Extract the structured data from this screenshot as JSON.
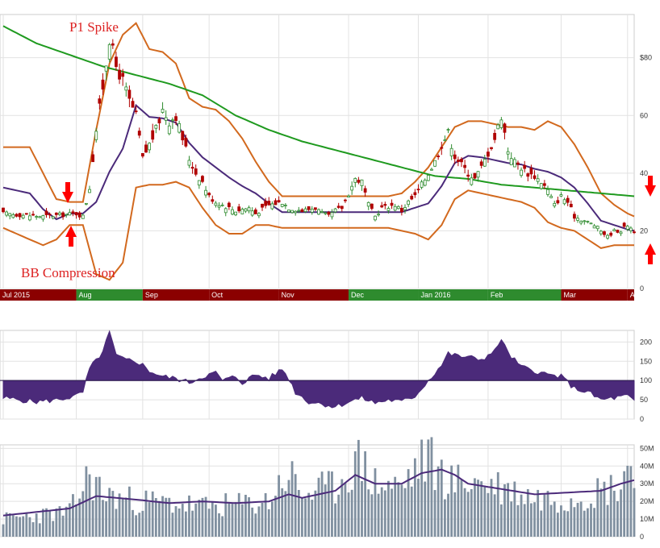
{
  "chart_data": [
    {
      "type": "candlestick",
      "panel": "price",
      "ylim": [
        0,
        95
      ],
      "y_ticks": [
        {
          "v": 0,
          "label": "0"
        },
        {
          "v": 20,
          "label": "20"
        },
        {
          "v": 40,
          "label": "40"
        },
        {
          "v": 60,
          "label": "60"
        },
        {
          "v": 80,
          "label": "$80"
        }
      ],
      "grid": true,
      "months": [
        "Jul 2015",
        "Aug",
        "Sep",
        "Oct",
        "Nov",
        "Dec",
        "Jan 2016",
        "Feb",
        "Mar",
        "Apr"
      ],
      "month_colors": [
        "#8b0000",
        "#2e8b2e",
        "#8b0000",
        "#8b0000",
        "#8b0000",
        "#2e8b2e",
        "#2e8b2e",
        "#2e8b2e",
        "#8b0000",
        "#8b0000"
      ],
      "annotations": [
        "P1 Spike",
        "BB Compression"
      ],
      "price_anchors": [
        [
          0,
          26
        ],
        [
          12,
          25
        ],
        [
          22,
          26
        ],
        [
          24,
          25
        ],
        [
          26,
          35
        ],
        [
          28,
          55
        ],
        [
          30,
          70
        ],
        [
          32,
          87
        ],
        [
          34,
          77
        ],
        [
          36,
          72
        ],
        [
          38,
          65
        ],
        [
          40,
          60
        ],
        [
          42,
          45
        ],
        [
          44,
          50
        ],
        [
          46,
          55
        ],
        [
          48,
          62
        ],
        [
          50,
          58
        ],
        [
          52,
          60
        ],
        [
          54,
          52
        ],
        [
          56,
          45
        ],
        [
          58,
          40
        ],
        [
          60,
          37
        ],
        [
          62,
          32
        ],
        [
          64,
          30
        ],
        [
          66,
          29
        ],
        [
          68,
          28
        ],
        [
          70,
          27
        ],
        [
          74,
          28
        ],
        [
          76,
          26
        ],
        [
          80,
          29
        ],
        [
          84,
          30
        ],
        [
          86,
          28
        ],
        [
          90,
          27
        ],
        [
          94,
          28
        ],
        [
          96,
          26
        ],
        [
          98,
          25
        ],
        [
          100,
          27
        ],
        [
          102,
          28
        ],
        [
          104,
          33
        ],
        [
          106,
          38
        ],
        [
          108,
          37
        ],
        [
          110,
          29
        ],
        [
          112,
          25
        ],
        [
          114,
          28
        ],
        [
          118,
          29
        ],
        [
          120,
          27
        ],
        [
          122,
          30
        ],
        [
          124,
          32
        ],
        [
          126,
          36
        ],
        [
          128,
          40
        ],
        [
          130,
          44
        ],
        [
          132,
          50
        ],
        [
          134,
          54
        ],
        [
          136,
          46
        ],
        [
          138,
          43
        ],
        [
          140,
          40
        ],
        [
          142,
          38
        ],
        [
          144,
          42
        ],
        [
          146,
          47
        ],
        [
          148,
          52
        ],
        [
          150,
          60
        ],
        [
          152,
          48
        ],
        [
          154,
          44
        ],
        [
          156,
          42
        ],
        [
          158,
          40
        ],
        [
          160,
          39
        ],
        [
          162,
          37
        ],
        [
          164,
          34
        ],
        [
          166,
          29
        ],
        [
          168,
          32
        ],
        [
          170,
          30
        ],
        [
          172,
          25
        ],
        [
          174,
          24
        ],
        [
          176,
          23
        ],
        [
          178,
          22
        ],
        [
          180,
          20
        ],
        [
          182,
          18
        ],
        [
          184,
          20
        ],
        [
          186,
          20
        ],
        [
          188,
          22
        ],
        [
          190,
          20
        ]
      ],
      "upper_band_anchors": [
        [
          0,
          49
        ],
        [
          8,
          49
        ],
        [
          12,
          40
        ],
        [
          16,
          31
        ],
        [
          20,
          30
        ],
        [
          24,
          30
        ],
        [
          28,
          55
        ],
        [
          32,
          78
        ],
        [
          36,
          88
        ],
        [
          40,
          92
        ],
        [
          44,
          83
        ],
        [
          48,
          82
        ],
        [
          52,
          78
        ],
        [
          56,
          66
        ],
        [
          60,
          63
        ],
        [
          64,
          62
        ],
        [
          68,
          58
        ],
        [
          72,
          52
        ],
        [
          76,
          44
        ],
        [
          80,
          37
        ],
        [
          84,
          32
        ],
        [
          88,
          32
        ],
        [
          92,
          32
        ],
        [
          96,
          32
        ],
        [
          100,
          32
        ],
        [
          104,
          32
        ],
        [
          108,
          32
        ],
        [
          112,
          32
        ],
        [
          116,
          32
        ],
        [
          120,
          33
        ],
        [
          124,
          37
        ],
        [
          128,
          42
        ],
        [
          132,
          49
        ],
        [
          136,
          56
        ],
        [
          140,
          58
        ],
        [
          144,
          58
        ],
        [
          148,
          57
        ],
        [
          152,
          56
        ],
        [
          156,
          56
        ],
        [
          160,
          55
        ],
        [
          164,
          58
        ],
        [
          168,
          56
        ],
        [
          172,
          50
        ],
        [
          176,
          42
        ],
        [
          180,
          33
        ],
        [
          184,
          29
        ],
        [
          188,
          26
        ],
        [
          190,
          25
        ]
      ],
      "lower_band_anchors": [
        [
          0,
          21
        ],
        [
          8,
          17
        ],
        [
          12,
          15
        ],
        [
          16,
          17
        ],
        [
          20,
          22
        ],
        [
          24,
          22
        ],
        [
          28,
          5
        ],
        [
          32,
          3
        ],
        [
          36,
          9
        ],
        [
          40,
          35
        ],
        [
          44,
          36
        ],
        [
          48,
          36
        ],
        [
          52,
          37
        ],
        [
          56,
          35
        ],
        [
          60,
          28
        ],
        [
          64,
          22
        ],
        [
          68,
          19
        ],
        [
          72,
          19
        ],
        [
          76,
          22
        ],
        [
          80,
          22
        ],
        [
          84,
          21
        ],
        [
          88,
          21
        ],
        [
          92,
          21
        ],
        [
          96,
          21
        ],
        [
          100,
          21
        ],
        [
          104,
          21
        ],
        [
          108,
          21
        ],
        [
          112,
          21
        ],
        [
          116,
          21
        ],
        [
          120,
          20
        ],
        [
          124,
          19
        ],
        [
          128,
          17
        ],
        [
          132,
          22
        ],
        [
          136,
          31
        ],
        [
          140,
          34
        ],
        [
          144,
          33
        ],
        [
          148,
          32
        ],
        [
          152,
          31
        ],
        [
          156,
          30
        ],
        [
          160,
          28
        ],
        [
          164,
          23
        ],
        [
          168,
          21
        ],
        [
          172,
          20
        ],
        [
          176,
          17
        ],
        [
          180,
          14
        ],
        [
          184,
          15
        ],
        [
          188,
          15
        ],
        [
          190,
          15
        ]
      ],
      "sma200_anchors": [
        [
          0,
          91
        ],
        [
          10,
          85
        ],
        [
          20,
          81
        ],
        [
          30,
          77
        ],
        [
          40,
          74
        ],
        [
          50,
          71
        ],
        [
          60,
          67
        ],
        [
          70,
          60
        ],
        [
          80,
          55
        ],
        [
          90,
          51
        ],
        [
          100,
          48
        ],
        [
          110,
          45
        ],
        [
          120,
          42
        ],
        [
          130,
          39
        ],
        [
          140,
          38
        ],
        [
          150,
          36
        ],
        [
          160,
          35
        ],
        [
          170,
          34
        ],
        [
          180,
          33
        ],
        [
          190,
          32
        ]
      ],
      "colors": {
        "up": "#2e8b2e",
        "down": "#b00000",
        "band": "#d2691e",
        "sma200": "#1f9a1f",
        "mid_band": "#4b2a7a",
        "arrow": "#ff0000"
      }
    },
    {
      "type": "area",
      "panel": "indicator",
      "ylim": [
        0,
        230
      ],
      "baseline": 100,
      "y_ticks": [
        {
          "v": 0,
          "label": "0"
        },
        {
          "v": 50,
          "label": "50"
        },
        {
          "v": 100,
          "label": "100"
        },
        {
          "v": 150,
          "label": "150"
        },
        {
          "v": 200,
          "label": "200"
        }
      ],
      "anchors": [
        [
          0,
          55
        ],
        [
          10,
          45
        ],
        [
          16,
          50
        ],
        [
          22,
          60
        ],
        [
          24,
          70
        ],
        [
          26,
          130
        ],
        [
          30,
          175
        ],
        [
          32,
          225
        ],
        [
          34,
          165
        ],
        [
          36,
          155
        ],
        [
          40,
          150
        ],
        [
          42,
          140
        ],
        [
          44,
          125
        ],
        [
          48,
          110
        ],
        [
          52,
          105
        ],
        [
          56,
          95
        ],
        [
          60,
          110
        ],
        [
          64,
          120
        ],
        [
          66,
          100
        ],
        [
          70,
          110
        ],
        [
          72,
          95
        ],
        [
          76,
          115
        ],
        [
          80,
          105
        ],
        [
          84,
          130
        ],
        [
          86,
          105
        ],
        [
          88,
          70
        ],
        [
          92,
          45
        ],
        [
          96,
          40
        ],
        [
          100,
          32
        ],
        [
          104,
          45
        ],
        [
          108,
          55
        ],
        [
          112,
          42
        ],
        [
          116,
          50
        ],
        [
          120,
          45
        ],
        [
          124,
          60
        ],
        [
          128,
          100
        ],
        [
          130,
          120
        ],
        [
          132,
          140
        ],
        [
          134,
          170
        ],
        [
          136,
          165
        ],
        [
          140,
          160
        ],
        [
          144,
          155
        ],
        [
          148,
          175
        ],
        [
          150,
          210
        ],
        [
          152,
          170
        ],
        [
          156,
          135
        ],
        [
          160,
          125
        ],
        [
          164,
          115
        ],
        [
          168,
          110
        ],
        [
          172,
          80
        ],
        [
          176,
          70
        ],
        [
          180,
          50
        ],
        [
          184,
          55
        ],
        [
          188,
          60
        ],
        [
          190,
          45
        ]
      ],
      "color": "#4b2a7a"
    },
    {
      "type": "bar",
      "panel": "volume",
      "ylim": [
        0,
        52
      ],
      "y_ticks": [
        {
          "v": 0,
          "label": "0"
        },
        {
          "v": 10,
          "label": "10M"
        },
        {
          "v": 20,
          "label": "20M"
        },
        {
          "v": 30,
          "label": "30M"
        },
        {
          "v": 40,
          "label": "40M"
        },
        {
          "v": 50,
          "label": "50M"
        }
      ],
      "volume_anchors": [
        [
          0,
          10
        ],
        [
          10,
          12
        ],
        [
          20,
          14
        ],
        [
          24,
          28
        ],
        [
          26,
          35
        ],
        [
          30,
          24
        ],
        [
          40,
          20
        ],
        [
          50,
          19
        ],
        [
          60,
          17
        ],
        [
          70,
          18
        ],
        [
          80,
          20
        ],
        [
          84,
          32
        ],
        [
          86,
          36
        ],
        [
          90,
          24
        ],
        [
          100,
          28
        ],
        [
          104,
          38
        ],
        [
          108,
          42
        ],
        [
          112,
          30
        ],
        [
          120,
          28
        ],
        [
          124,
          38
        ],
        [
          128,
          45
        ],
        [
          130,
          38
        ],
        [
          136,
          30
        ],
        [
          140,
          32
        ],
        [
          150,
          28
        ],
        [
          160,
          22
        ],
        [
          170,
          22
        ],
        [
          180,
          26
        ],
        [
          186,
          30
        ],
        [
          188,
          44
        ],
        [
          190,
          28
        ]
      ],
      "ma_anchors": [
        [
          0,
          12
        ],
        [
          10,
          14
        ],
        [
          20,
          16
        ],
        [
          28,
          23
        ],
        [
          40,
          21
        ],
        [
          50,
          19
        ],
        [
          60,
          20
        ],
        [
          70,
          19
        ],
        [
          80,
          20
        ],
        [
          86,
          24
        ],
        [
          90,
          22
        ],
        [
          100,
          26
        ],
        [
          106,
          35
        ],
        [
          112,
          30
        ],
        [
          120,
          30
        ],
        [
          126,
          36
        ],
        [
          132,
          38
        ],
        [
          136,
          35
        ],
        [
          140,
          30
        ],
        [
          150,
          27
        ],
        [
          160,
          24
        ],
        [
          170,
          25
        ],
        [
          180,
          26
        ],
        [
          186,
          30
        ],
        [
          190,
          32
        ]
      ],
      "bar_color": "#8090a0",
      "ma_color": "#4b2a7a"
    }
  ]
}
